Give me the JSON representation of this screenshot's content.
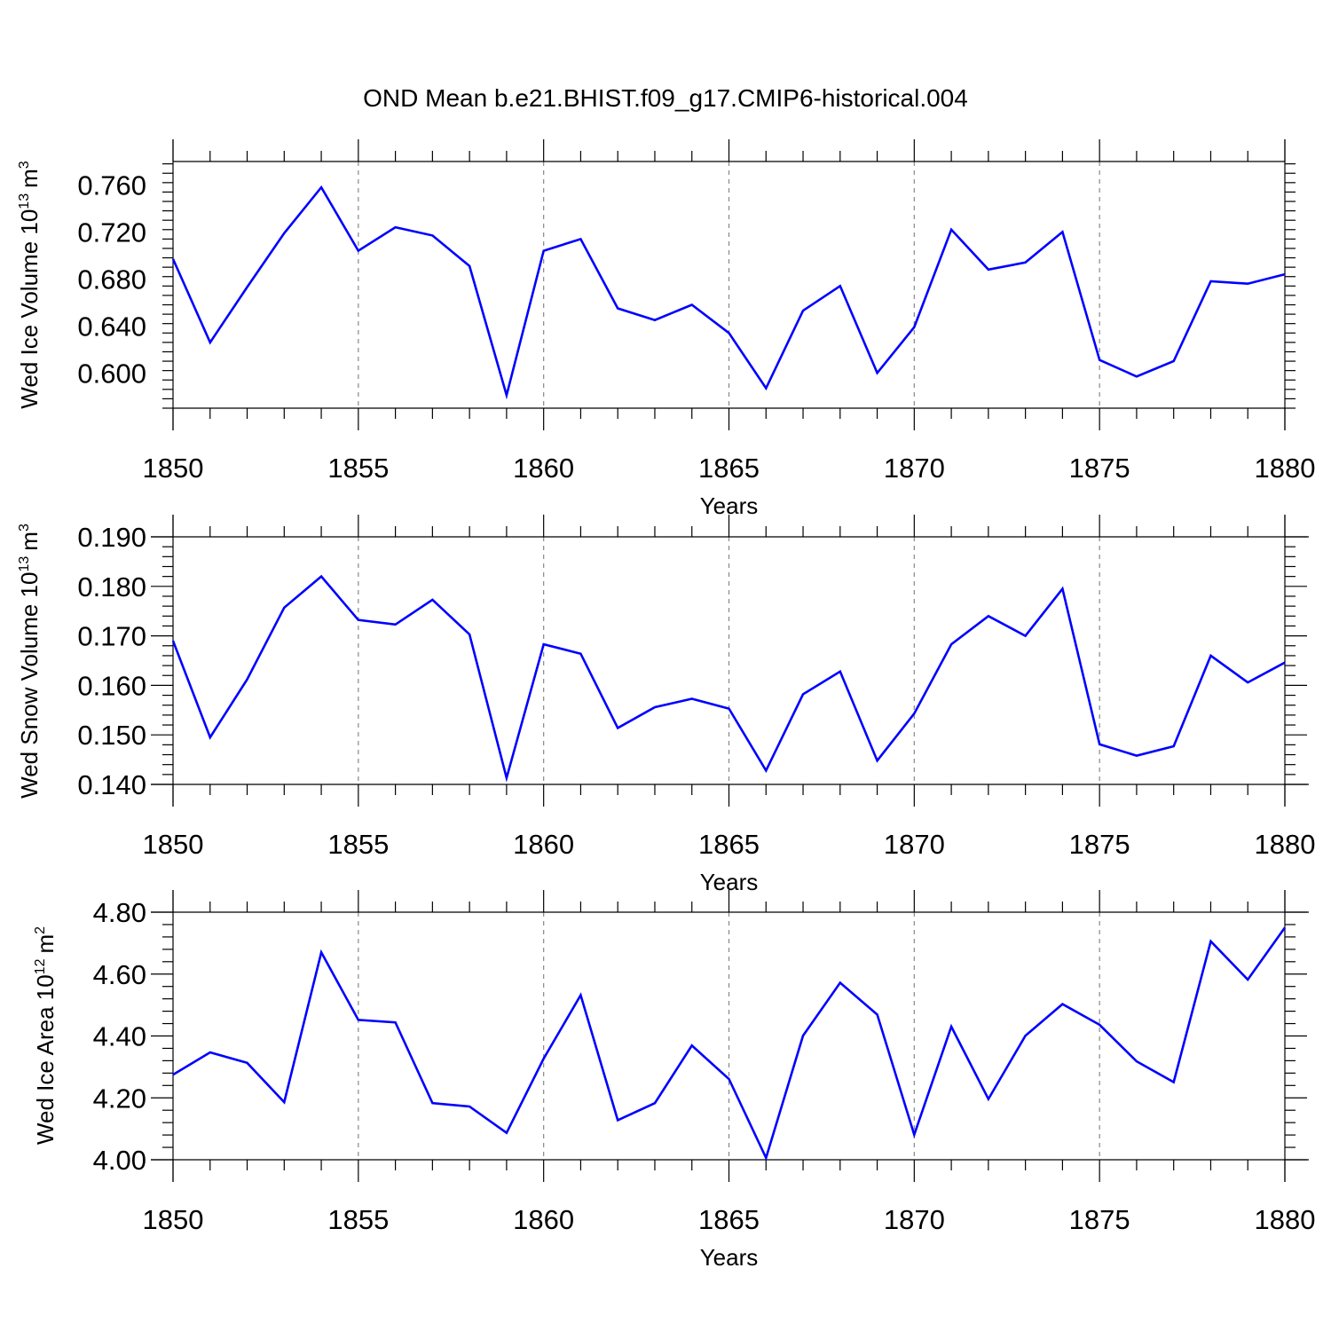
{
  "figure_title": "OND Mean b.e21.BHIST.f09_g17.CMIP6-historical.004",
  "colors": {
    "line": "#0000ff",
    "grid": "#888888",
    "axes": "#000000"
  },
  "chart_data": [
    {
      "type": "line",
      "title": "",
      "ylabel": "Wed Ice Volume 10",
      "ylabel_exponent": "13",
      "ylabel_unit": "m",
      "ylabel_unit_exponent": "3",
      "xlabel": "Years",
      "xlim": [
        1850,
        1880
      ],
      "ylim": [
        0.57,
        0.78
      ],
      "yticks": [
        0.6,
        0.64,
        0.68,
        0.72,
        0.76
      ],
      "ytick_labels": [
        "0.600",
        "0.640",
        "0.680",
        "0.720",
        "0.760"
      ],
      "xticks": [
        1850,
        1855,
        1860,
        1865,
        1870,
        1875,
        1880
      ],
      "xtick_labels": [
        "1850",
        "1855",
        "1860",
        "1865",
        "1870",
        "1875",
        "1880"
      ],
      "grid_x": [
        1855,
        1860,
        1865,
        1870,
        1875
      ],
      "x": [
        1850,
        1851,
        1852,
        1853,
        1854,
        1855,
        1856,
        1857,
        1858,
        1859,
        1860,
        1861,
        1862,
        1863,
        1864,
        1865,
        1866,
        1867,
        1868,
        1869,
        1870,
        1871,
        1872,
        1873,
        1874,
        1875,
        1876,
        1877,
        1878,
        1879,
        1880
      ],
      "y": [
        0.697,
        0.626,
        0.673,
        0.719,
        0.758,
        0.704,
        0.724,
        0.717,
        0.691,
        0.581,
        0.704,
        0.714,
        0.655,
        0.645,
        0.658,
        0.634,
        0.587,
        0.653,
        0.674,
        0.6,
        0.639,
        0.722,
        0.688,
        0.694,
        0.72,
        0.611,
        0.597,
        0.61,
        0.678,
        0.676,
        0.684
      ]
    },
    {
      "type": "line",
      "title": "",
      "ylabel": "Wed Snow Volume 10",
      "ylabel_exponent": "13",
      "ylabel_unit": "m",
      "ylabel_unit_exponent": "3",
      "xlabel": "Years",
      "xlim": [
        1850,
        1880
      ],
      "ylim": [
        0.14,
        0.19
      ],
      "yticks": [
        0.14,
        0.15,
        0.16,
        0.17,
        0.18,
        0.19
      ],
      "ytick_labels": [
        "0.140",
        "0.150",
        "0.160",
        "0.170",
        "0.180",
        "0.190"
      ],
      "xticks": [
        1850,
        1855,
        1860,
        1865,
        1870,
        1875,
        1880
      ],
      "xtick_labels": [
        "1850",
        "1855",
        "1860",
        "1865",
        "1870",
        "1875",
        "1880"
      ],
      "grid_x": [
        1855,
        1860,
        1865,
        1870,
        1875
      ],
      "x": [
        1850,
        1851,
        1852,
        1853,
        1854,
        1855,
        1856,
        1857,
        1858,
        1859,
        1860,
        1861,
        1862,
        1863,
        1864,
        1865,
        1866,
        1867,
        1868,
        1869,
        1870,
        1871,
        1872,
        1873,
        1874,
        1875,
        1876,
        1877,
        1878,
        1879,
        1880
      ],
      "y": [
        0.169,
        0.1495,
        0.1612,
        0.1757,
        0.182,
        0.1732,
        0.1723,
        0.1773,
        0.1703,
        0.1413,
        0.1683,
        0.1664,
        0.1514,
        0.1556,
        0.1573,
        0.1553,
        0.1428,
        0.1582,
        0.1628,
        0.1448,
        0.1543,
        0.1683,
        0.174,
        0.17,
        0.1795,
        0.1481,
        0.1458,
        0.1477,
        0.166,
        0.1606,
        0.1646
      ]
    },
    {
      "type": "line",
      "title": "",
      "ylabel": "Wed Ice Area 10",
      "ylabel_exponent": "12",
      "ylabel_unit": "m",
      "ylabel_unit_exponent": "2",
      "xlabel": "Years",
      "xlim": [
        1850,
        1880
      ],
      "ylim": [
        4.0,
        4.8
      ],
      "yticks": [
        4.0,
        4.2,
        4.4,
        4.6,
        4.8
      ],
      "ytick_labels": [
        "4.00",
        "4.20",
        "4.40",
        "4.60",
        "4.80"
      ],
      "xticks": [
        1850,
        1855,
        1860,
        1865,
        1870,
        1875,
        1880
      ],
      "xtick_labels": [
        "1850",
        "1855",
        "1860",
        "1865",
        "1870",
        "1875",
        "1880"
      ],
      "grid_x": [
        1855,
        1860,
        1865,
        1870,
        1875
      ],
      "x": [
        1850,
        1851,
        1852,
        1853,
        1854,
        1855,
        1856,
        1857,
        1858,
        1859,
        1860,
        1861,
        1862,
        1863,
        1864,
        1865,
        1866,
        1867,
        1868,
        1869,
        1870,
        1871,
        1872,
        1873,
        1874,
        1875,
        1876,
        1877,
        1878,
        1879,
        1880
      ],
      "y": [
        4.275,
        4.347,
        4.313,
        4.186,
        4.67,
        4.452,
        4.444,
        4.183,
        4.172,
        4.087,
        4.327,
        4.532,
        4.128,
        4.183,
        4.369,
        4.261,
        4.006,
        4.401,
        4.572,
        4.469,
        4.081,
        4.43,
        4.196,
        4.401,
        4.503,
        4.436,
        4.318,
        4.251,
        4.706,
        4.582,
        4.75
      ]
    }
  ]
}
